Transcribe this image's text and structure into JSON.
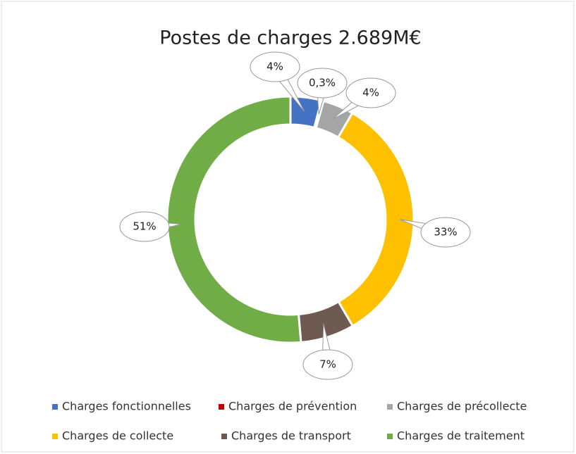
{
  "chart_data": {
    "type": "donut",
    "title": "Postes de charges 2.689M€",
    "categories": [
      "Charges fonctionnelles",
      "Charges de prévention",
      "Charges de précollecte",
      "Charges de collecte",
      "Charges de transport",
      "Charges de traitement"
    ],
    "values": [
      4,
      0.3,
      4,
      33,
      7,
      51
    ],
    "value_labels": [
      "4%",
      "0,3%",
      "4%",
      "33%",
      "7%",
      "51%"
    ],
    "colors": [
      "#4472c4",
      "#c00000",
      "#a5a5a5",
      "#ffc000",
      "#6f5a52",
      "#70ad47"
    ],
    "legend": "bottom"
  }
}
